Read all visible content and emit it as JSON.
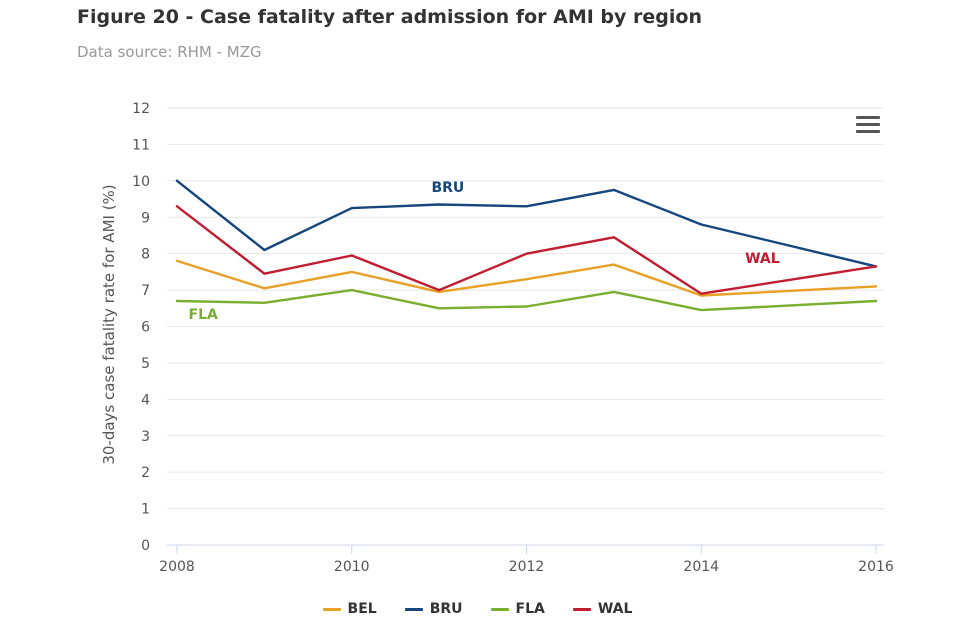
{
  "header": {
    "title": "Figure 20 - Case fatality after admission for AMI by region",
    "subtitle": "Data source: RHM - MZG"
  },
  "menu": {
    "icon": "hamburger-menu-icon"
  },
  "chart_data": {
    "type": "line",
    "title": "Figure 20 - Case fatality after admission for AMI by region",
    "subtitle": "Data source: RHM - MZG",
    "xlabel": "",
    "ylabel": "30-days case fatality rate for AMI (%)",
    "x": [
      2008,
      2009,
      2010,
      2011,
      2012,
      2013,
      2014,
      2015,
      2016
    ],
    "x_ticks": [
      "2008",
      "2010",
      "2012",
      "2014",
      "2016"
    ],
    "ylim": [
      0,
      12
    ],
    "y_ticks": [
      "0",
      "1",
      "2",
      "3",
      "4",
      "5",
      "6",
      "7",
      "8",
      "9",
      "10",
      "11",
      "12"
    ],
    "grid": true,
    "legend_position": "bottom-center",
    "series": [
      {
        "name": "BEL",
        "color": "#e8a026",
        "values": [
          7.8,
          7.05,
          7.5,
          6.95,
          7.3,
          7.7,
          6.85,
          null,
          7.1
        ]
      },
      {
        "name": "BRU",
        "color": "#16467e",
        "values": [
          10.0,
          8.1,
          9.25,
          9.35,
          9.3,
          9.75,
          8.8,
          null,
          7.65
        ]
      },
      {
        "name": "FLA",
        "color": "#7aae2e",
        "values": [
          6.7,
          6.65,
          7.0,
          6.5,
          6.55,
          6.95,
          6.45,
          null,
          6.7
        ]
      },
      {
        "name": "WAL",
        "color": "#c11c30",
        "values": [
          9.3,
          7.45,
          7.95,
          7.0,
          8.0,
          8.45,
          6.9,
          null,
          7.65
        ]
      }
    ],
    "annotations": [
      {
        "text": "BRU",
        "series": "BRU",
        "x": 2011.1,
        "y": 9.7
      },
      {
        "text": "WAL",
        "series": "WAL",
        "x": 2014.7,
        "y": 7.75
      },
      {
        "text": "FLA",
        "series": "FLA",
        "x": 2008.3,
        "y": 6.2
      }
    ]
  }
}
